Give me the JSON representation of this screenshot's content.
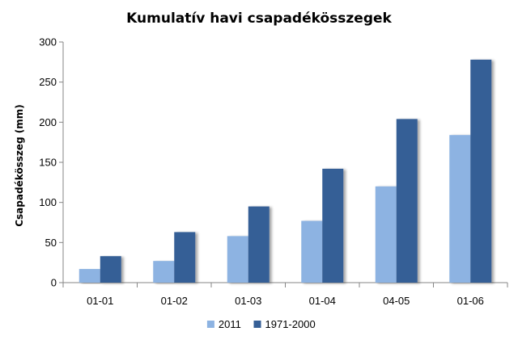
{
  "chart_data": {
    "type": "bar",
    "title": "Kumulatív havi csapadékösszegek",
    "xlabel": "",
    "ylabel": "Csapadékösszeg  (mm)",
    "categories": [
      "01-01",
      "01-02",
      "01-03",
      "01-04",
      "04-05",
      "01-06"
    ],
    "series": [
      {
        "name": "2011",
        "values": [
          17,
          27,
          58,
          77,
          120,
          184
        ],
        "color": "#8db3e2"
      },
      {
        "name": "1971-2000",
        "values": [
          33,
          63,
          95,
          142,
          204,
          278
        ],
        "color": "#365f96"
      }
    ],
    "ylim": [
      0,
      300
    ],
    "yticks": [
      0,
      50,
      100,
      150,
      200,
      250,
      300
    ],
    "grid": false,
    "legend_position": "bottom"
  }
}
